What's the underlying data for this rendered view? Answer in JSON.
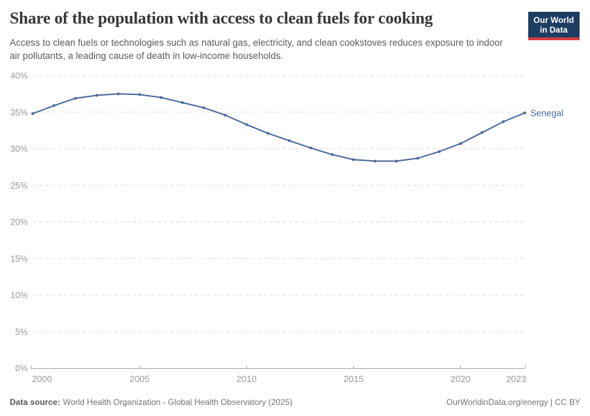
{
  "header": {
    "title": "Share of the population with access to clean fuels for cooking",
    "subtitle": "Access to clean fuels or technologies such as natural gas, electricity, and clean cookstoves reduces exposure to indoor air pollutants, a leading cause of death in low-income households."
  },
  "logo": {
    "line1": "Our World",
    "line2": "in Data",
    "background": "#1d3d63",
    "accent": "#d93d3e"
  },
  "chart_data": {
    "type": "line",
    "title": "Share of the population with access to clean fuels for cooking",
    "xlabel": "",
    "ylabel": "",
    "unit": "%",
    "x": [
      2000,
      2001,
      2002,
      2003,
      2004,
      2005,
      2006,
      2007,
      2008,
      2009,
      2010,
      2011,
      2012,
      2013,
      2014,
      2015,
      2016,
      2017,
      2018,
      2019,
      2020,
      2021,
      2022,
      2023
    ],
    "series": [
      {
        "name": "Senegal",
        "color": "#4c6a9c",
        "values": [
          34.8,
          35.9,
          36.9,
          37.3,
          37.5,
          37.4,
          37.0,
          36.3,
          35.6,
          34.6,
          33.3,
          32.1,
          31.1,
          30.1,
          29.2,
          28.5,
          28.3,
          28.3,
          28.7,
          29.6,
          30.7,
          32.2,
          33.7,
          34.9
        ]
      }
    ],
    "xlim": [
      2000,
      2023
    ],
    "ylim": [
      0,
      40
    ],
    "yticks": [
      {
        "value": 0,
        "label": "0%"
      },
      {
        "value": 5,
        "label": "5%"
      },
      {
        "value": 10,
        "label": "10%"
      },
      {
        "value": 15,
        "label": "15%"
      },
      {
        "value": 20,
        "label": "20%"
      },
      {
        "value": 25,
        "label": "25%"
      },
      {
        "value": 30,
        "label": "30%"
      },
      {
        "value": 35,
        "label": "35%"
      },
      {
        "value": 40,
        "label": "40%"
      }
    ],
    "xticks": [
      {
        "value": 2000,
        "label": "2000",
        "anchor": "start"
      },
      {
        "value": 2005,
        "label": "2005",
        "anchor": "middle"
      },
      {
        "value": 2010,
        "label": "2010",
        "anchor": "middle"
      },
      {
        "value": 2015,
        "label": "2015",
        "anchor": "middle"
      },
      {
        "value": 2020,
        "label": "2020",
        "anchor": "middle"
      },
      {
        "value": 2023,
        "label": "2023",
        "anchor": "end"
      }
    ],
    "grid": "horizontal-dashed",
    "legend_position": "end-of-line-label"
  },
  "footer": {
    "source_label": "Data source:",
    "source_text": "World Health Organization - Global Health Observatory (2025)",
    "right_text": "OurWorldinData.org/energy | CC BY"
  },
  "colors": {
    "line": "#4c6a9c",
    "grid": "#dedede",
    "axis": "#a8a8a8",
    "tick_label": "#9a9a9a",
    "title": "#383838",
    "subtitle": "#5b5b5b",
    "footer": "#757575"
  }
}
